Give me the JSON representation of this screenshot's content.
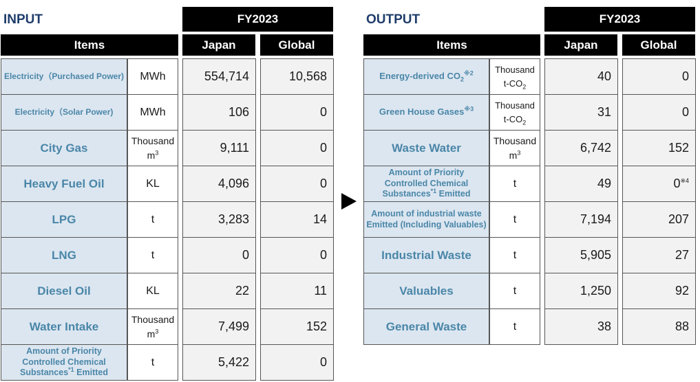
{
  "input": {
    "title": "INPUT",
    "fy_label": "FY2023",
    "headers": {
      "items": "Items",
      "japan": "Japan",
      "global": "Global"
    },
    "rows": [
      {
        "item": "Electricity（Purchased Power)",
        "unit": "MWh",
        "japan": "554,714",
        "global": "10,568"
      },
      {
        "item": "Electricity（Solar Power)",
        "unit": "MWh",
        "japan": "106",
        "global": "0"
      },
      {
        "item": "City Gas",
        "unit_a": "Thousand",
        "unit_b": "m",
        "unit_sup": "3",
        "japan": "9,111",
        "global": "0"
      },
      {
        "item": "Heavy Fuel Oil",
        "unit": "KL",
        "japan": "4,096",
        "global": "0"
      },
      {
        "item": "LPG",
        "unit": "t",
        "japan": "3,283",
        "global": "14"
      },
      {
        "item": "LNG",
        "unit": "t",
        "japan": "0",
        "global": "0"
      },
      {
        "item": "Diesel Oil",
        "unit": "KL",
        "japan": "22",
        "global": "11"
      },
      {
        "item": "Water Intake",
        "unit_a": "Thousand",
        "unit_b": "m",
        "unit_sup": "3",
        "japan": "7,499",
        "global": "152"
      },
      {
        "item_a": "Amount of Priority",
        "item_b": "Controlled Chemical",
        "item_c": "Substances",
        "item_sup": "*1",
        "item_d": " Emitted",
        "unit": "t",
        "japan": "5,422",
        "global": "0"
      }
    ]
  },
  "output": {
    "title": "OUTPUT",
    "fy_label": "FY2023",
    "headers": {
      "items": "Items",
      "japan": "Japan",
      "global": "Global"
    },
    "rows": [
      {
        "item": "Energy-derived CO",
        "item_sub": "2",
        "item_sup": "※2",
        "unit_a": "Thousand",
        "unit_b": "t-CO",
        "unit_sub": "2",
        "japan": "40",
        "global": "0"
      },
      {
        "item": "Green House Gases",
        "item_sup": "※3",
        "unit_a": "Thousand",
        "unit_b": "t-CO",
        "unit_sub": "2",
        "japan": "31",
        "global": "0"
      },
      {
        "item": "Waste Water",
        "unit_a": "Thousand",
        "unit_b": "m",
        "unit_sup": "3",
        "japan": "6,742",
        "global": "152"
      },
      {
        "item_a": "Amount of Priority",
        "item_b": "Controlled Chemical",
        "item_c": "Substances",
        "item_sup": "*1",
        "item_d": " Emitted",
        "unit": "t",
        "japan": "49",
        "global": "0",
        "global_sup": "※4"
      },
      {
        "item_a": "Amount of industrial waste",
        "item_b": "Emitted (Including Valuables)",
        "unit": "t",
        "japan": "7,194",
        "global": "207"
      },
      {
        "item": "Industrial Waste",
        "unit": "t",
        "japan": "5,905",
        "global": "27"
      },
      {
        "item": "Valuables",
        "unit": "t",
        "japan": "1,250",
        "global": "92"
      },
      {
        "item": "General Waste",
        "unit": "t",
        "japan": "38",
        "global": "88"
      }
    ]
  }
}
